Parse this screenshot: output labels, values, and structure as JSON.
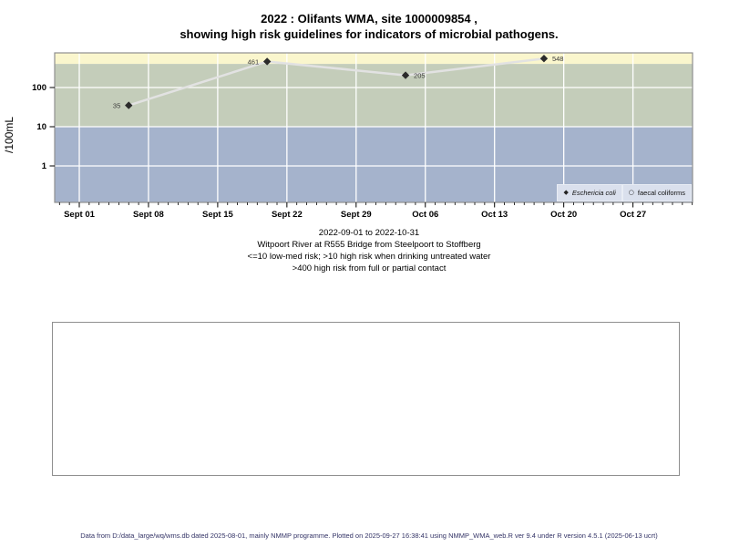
{
  "title": {
    "line1": "2022 : Olifants WMA, site 1000009854 ,",
    "line2": "showing high risk guidelines for indicators of microbial pathogens."
  },
  "chart_data": {
    "type": "line",
    "title": "2022 : Olifants WMA, site 1000009854, showing high risk guidelines for indicators of microbial pathogens.",
    "xlabel": "",
    "ylabel": "/100mL",
    "y_scale": "log10",
    "y_domain": [
      0.117,
      760
    ],
    "x_domain_days": [
      -2.5,
      62
    ],
    "x_epoch": "2022-09-01",
    "grid": true,
    "legend_position": "bottom-right",
    "y_ticks": [
      {
        "value": 100,
        "label": "100"
      },
      {
        "value": 10,
        "label": "10"
      },
      {
        "value": 1,
        "label": "1"
      }
    ],
    "x_ticks": [
      {
        "day": 0,
        "label": "Sept 01"
      },
      {
        "day": 7,
        "label": "Sept 08"
      },
      {
        "day": 14,
        "label": "Sept 15"
      },
      {
        "day": 21,
        "label": "Sept 22"
      },
      {
        "day": 28,
        "label": "Sept 29"
      },
      {
        "day": 35,
        "label": "Oct 06"
      },
      {
        "day": 42,
        "label": "Oct 13"
      },
      {
        "day": 49,
        "label": "Oct 20"
      },
      {
        "day": 56,
        "label": "Oct 27"
      }
    ],
    "bands": [
      {
        "name": "high-risk-full-or-partial-contact",
        "rule": ">400",
        "from": 400,
        "to": 760,
        "color": "#FAF6CD"
      },
      {
        "name": "high-risk-drinking-untreated-water",
        "rule": ">10 to 400",
        "from": 10,
        "to": 400,
        "color": "#C4CDBA"
      },
      {
        "name": "low-med-risk",
        "rule": "<=10",
        "from": 0.117,
        "to": 10,
        "color": "#A5B3CC"
      }
    ],
    "series": [
      {
        "name": "Eschericia coli",
        "marker": "filled-diamond",
        "marker_color": "#2B2B2B",
        "line_color": "#E2E2E2",
        "points": [
          {
            "date": "2022-09-06",
            "day": 5,
            "value": 35,
            "label": "35",
            "label_side": "left"
          },
          {
            "date": "2022-09-20",
            "day": 19,
            "value": 461,
            "label": "461",
            "label_side": "left"
          },
          {
            "date": "2022-10-04",
            "day": 33,
            "value": 205,
            "label": "205",
            "label_side": "right"
          },
          {
            "date": "2022-10-18",
            "day": 47,
            "value": 548,
            "label": "548",
            "label_side": "right"
          }
        ]
      },
      {
        "name": "faecal coliforms",
        "marker": "open-circle",
        "marker_color": "#2B2B2B",
        "points": []
      }
    ]
  },
  "legend": {
    "items": [
      {
        "label": "Eschericia coli",
        "glyph": "◆",
        "marker": "filled-diamond",
        "italic": true
      },
      {
        "label": "faecal coliforms",
        "glyph": "○",
        "marker": "open-circle",
        "italic": false
      }
    ]
  },
  "caption": {
    "line1": "2022-09-01 to 2022-10-31",
    "line2": "Witpoort River at R555 Bridge from Steelpoort to Stoffberg",
    "line3": "<=10 low-med risk; >10 high risk when drinking untreated water",
    "line4": ">400 high risk from full or partial contact"
  },
  "footer": {
    "text": "Data from D:/data_large/wq/wms.db dated 2025-08-01, mainly NMMP programme. Plotted on 2025-09-27 16:38:41 using NMMP_WMA_web.R ver 9.4 under R version 4.5.1 (2025-06-13 ucrt)"
  }
}
